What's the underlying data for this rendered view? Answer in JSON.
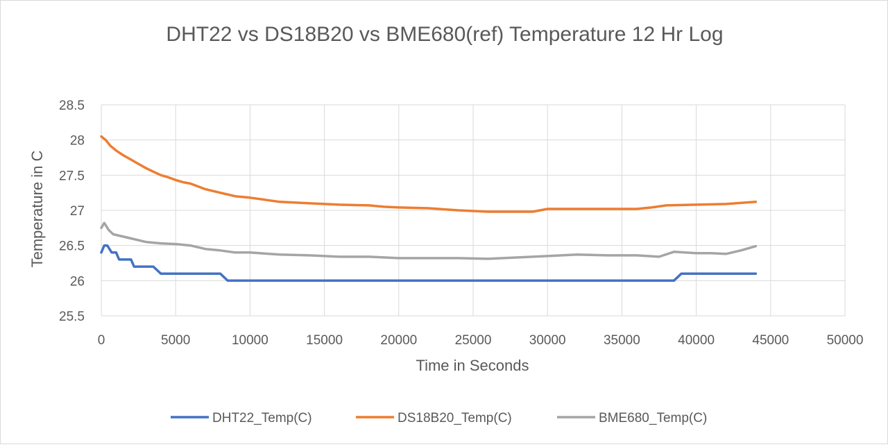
{
  "chart_data": {
    "type": "line",
    "title": "DHT22 vs DS18B20 vs BME680(ref) Temperature  12 Hr Log",
    "xlabel": "Time in Seconds",
    "ylabel": "Temperature in C",
    "xlim": [
      0,
      50000
    ],
    "ylim": [
      25.5,
      28.5
    ],
    "x_ticks": [
      0,
      5000,
      10000,
      15000,
      20000,
      25000,
      30000,
      35000,
      40000,
      45000,
      50000
    ],
    "y_ticks": [
      25.5,
      26,
      26.5,
      27,
      27.5,
      28,
      28.5
    ],
    "grid": true,
    "legend_position": "bottom",
    "series": [
      {
        "name": "DHT22_Temp(C)",
        "color": "#4472C4",
        "x": [
          0,
          200,
          400,
          700,
          1000,
          1200,
          1500,
          2000,
          2200,
          2500,
          3000,
          3500,
          4000,
          4500,
          5000,
          5500,
          6000,
          7000,
          8000,
          8500,
          9000,
          10000,
          11000,
          12000,
          14000,
          16000,
          18000,
          20000,
          22000,
          24000,
          26000,
          28000,
          30000,
          32000,
          34000,
          36000,
          37500,
          38500,
          39000,
          40000,
          41000,
          42000,
          43000,
          44000
        ],
        "y": [
          26.4,
          26.5,
          26.5,
          26.4,
          26.4,
          26.3,
          26.3,
          26.3,
          26.2,
          26.2,
          26.2,
          26.2,
          26.1,
          26.1,
          26.1,
          26.1,
          26.1,
          26.1,
          26.1,
          26.0,
          26.0,
          26.0,
          26.0,
          26.0,
          26.0,
          26.0,
          26.0,
          26.0,
          26.0,
          26.0,
          26.0,
          26.0,
          26.0,
          26.0,
          26.0,
          26.0,
          26.0,
          26.0,
          26.1,
          26.1,
          26.1,
          26.1,
          26.1,
          26.1
        ]
      },
      {
        "name": "DS18B20_Temp(C)",
        "color": "#ED7D31",
        "x": [
          0,
          300,
          600,
          1000,
          1500,
          2000,
          2500,
          3000,
          3500,
          4000,
          4500,
          5000,
          5500,
          6000,
          7000,
          8000,
          9000,
          10000,
          11000,
          12000,
          14000,
          16000,
          18000,
          19000,
          20000,
          22000,
          24000,
          26000,
          28000,
          29000,
          30000,
          32000,
          34000,
          36000,
          37000,
          38000,
          40000,
          42000,
          44000
        ],
        "y": [
          28.05,
          28.0,
          27.92,
          27.85,
          27.78,
          27.72,
          27.66,
          27.6,
          27.55,
          27.5,
          27.47,
          27.43,
          27.4,
          27.38,
          27.3,
          27.25,
          27.2,
          27.18,
          27.15,
          27.12,
          27.1,
          27.08,
          27.07,
          27.05,
          27.04,
          27.03,
          27.0,
          26.98,
          26.98,
          26.98,
          27.02,
          27.02,
          27.02,
          27.02,
          27.04,
          27.07,
          27.08,
          27.09,
          27.12
        ]
      },
      {
        "name": "BME680_Temp(C)",
        "color": "#A5A5A5",
        "x": [
          0,
          200,
          500,
          800,
          1200,
          2000,
          3000,
          4000,
          5000,
          6000,
          7000,
          8000,
          9000,
          10000,
          12000,
          14000,
          16000,
          18000,
          20000,
          22000,
          24000,
          26000,
          28000,
          30000,
          32000,
          34000,
          36000,
          37500,
          38500,
          40000,
          41000,
          42000,
          43000,
          44000
        ],
        "y": [
          26.75,
          26.82,
          26.72,
          26.66,
          26.64,
          26.6,
          26.55,
          26.53,
          26.52,
          26.5,
          26.45,
          26.43,
          26.4,
          26.4,
          26.37,
          26.36,
          26.34,
          26.34,
          26.32,
          26.32,
          26.32,
          26.31,
          26.33,
          26.35,
          26.37,
          26.36,
          26.36,
          26.34,
          26.41,
          26.39,
          26.39,
          26.38,
          26.43,
          26.49
        ]
      }
    ]
  }
}
